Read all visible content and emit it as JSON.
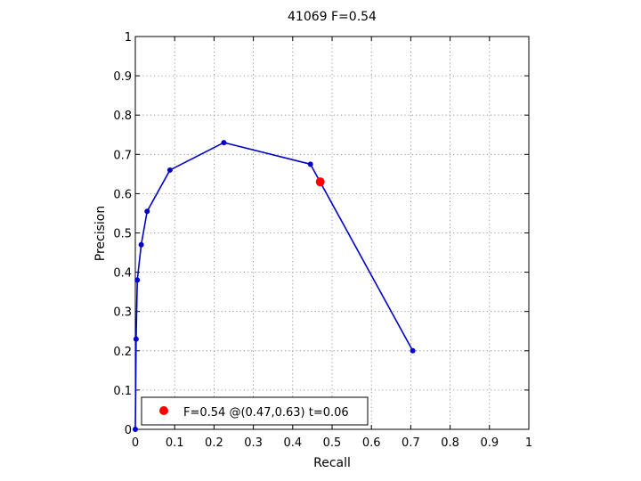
{
  "chart_data": {
    "type": "line",
    "title": "41069 F=0.54",
    "xlabel": "Recall",
    "ylabel": "Precision",
    "xlim": [
      0,
      1
    ],
    "ylim": [
      0,
      1
    ],
    "xticks": [
      "0",
      "0.1",
      "0.2",
      "0.3",
      "0.4",
      "0.5",
      "0.6",
      "0.7",
      "0.8",
      "0.9",
      "1"
    ],
    "yticks": [
      "0",
      "0.1",
      "0.2",
      "0.3",
      "0.4",
      "0.5",
      "0.6",
      "0.7",
      "0.8",
      "0.9",
      "1"
    ],
    "grid": true,
    "series": [
      {
        "color": "#0000cc",
        "x": [
          0,
          0.002,
          0.005,
          0.015,
          0.03,
          0.088,
          0.225,
          0.445,
          0.705
        ],
        "y": [
          0,
          0.23,
          0.38,
          0.47,
          0.555,
          0.66,
          0.73,
          0.675,
          0.2
        ]
      }
    ],
    "best_point": {
      "x": 0.47,
      "y": 0.63,
      "color": "#ff0000"
    },
    "legend": {
      "placement": "bottom-left",
      "entry": "F=0.54 @(0.47,0.63) t=0.06"
    }
  }
}
